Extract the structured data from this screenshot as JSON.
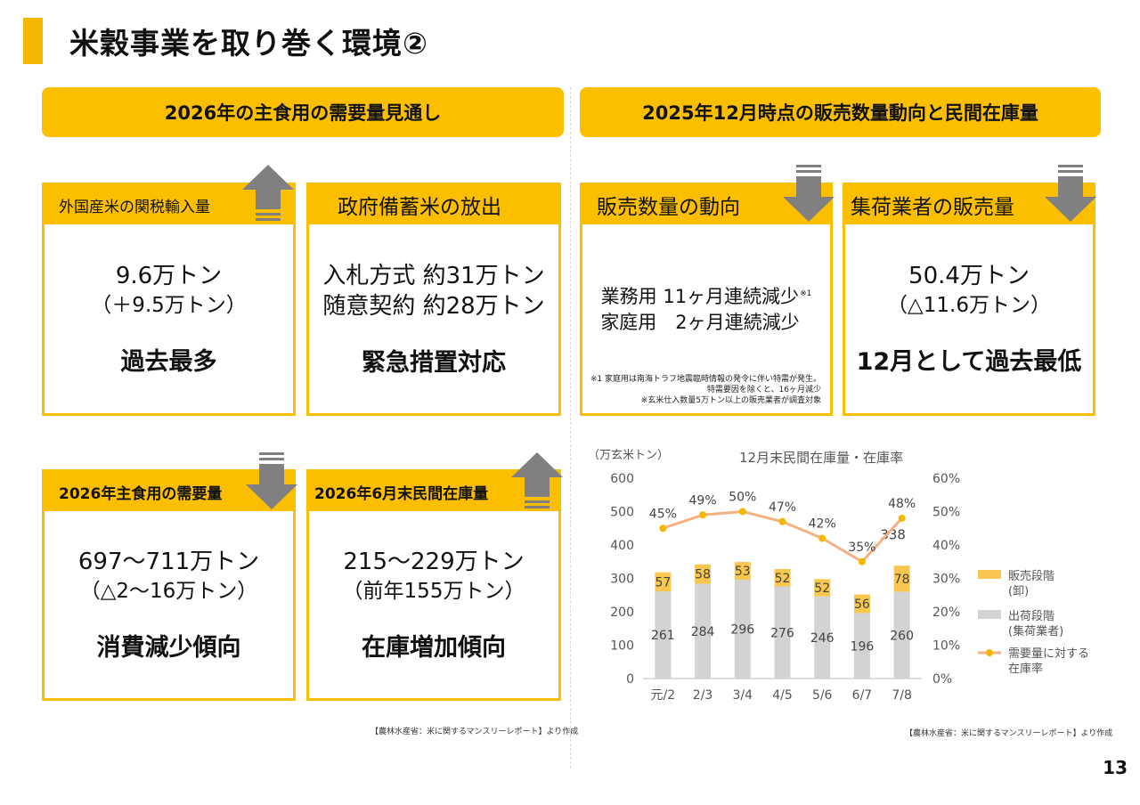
{
  "page": {
    "title": "米穀事業を取り巻く環境②",
    "number": "13"
  },
  "left_section": {
    "header": "2026年の主食用の需要量見通し",
    "cards": [
      {
        "label": "外国産米の関税輸入量",
        "line1": "9.6万トン",
        "line2": "（＋9.5万トン）",
        "emphasis": "過去最多",
        "trend": "up"
      },
      {
        "label": "政府備蓄米の放出",
        "line1": "入札方式 約31万トン",
        "line2": "随意契約 約28万トン",
        "emphasis": "緊急措置対応",
        "trend": "none"
      },
      {
        "label": "2026年主食用の需要量",
        "line1": "697～711万トン",
        "line2": "（△2～16万トン）",
        "emphasis": "消費減少傾向",
        "trend": "down"
      },
      {
        "label": "2026年6月末民間在庫量",
        "line1": "215～229万トン",
        "line2": "（前年155万トン）",
        "emphasis": "在庫増加傾向",
        "trend": "up"
      }
    ],
    "source": "【農林水産省：米に関するマンスリーレポート】より作成"
  },
  "right_section": {
    "header": "2025年12月時点の販売数量動向と民間在庫量",
    "cards": [
      {
        "label": "販売数量の動向",
        "line1": "業務用 11ヶ月連続減少",
        "sup": "※1",
        "line2": "家庭用　2ヶ月連続減少",
        "trend": "down",
        "notes": [
          "※1 家庭用は南海トラフ地震臨時情報の発令に伴い特需が発生。",
          "特需要因を除くと、16ヶ月減少",
          "※玄米仕入数量5万トン以上の販売業者が調査対象"
        ]
      },
      {
        "label": "集荷業者の販売量",
        "line1": "50.4万トン",
        "line2": "（△11.6万トン）",
        "emphasis": "12月として過去最低",
        "trend": "down"
      }
    ],
    "source": "【農林水産省：米に関するマンスリーレポート】より作成"
  },
  "colors": {
    "accent": "#fbbf00",
    "arrow": "#808080",
    "shipping_bar": "#d3d3d3",
    "sales_bar": "#f9c74f",
    "ratio_line": "#f4b183",
    "ratio_dot": "#f5b800"
  },
  "chart_data": {
    "type": "bar",
    "title": "12月末民間在庫量・在庫率",
    "ylabel": "（万玄米トン）",
    "categories": [
      "元/2",
      "2/3",
      "3/4",
      "4/5",
      "5/6",
      "6/7",
      "7/8"
    ],
    "ylim": [
      0,
      600
    ],
    "yticks": [
      "0",
      "100",
      "200",
      "300",
      "400",
      "500",
      "600"
    ],
    "y2lim": [
      0,
      60
    ],
    "y2ticks": [
      "0%",
      "10%",
      "20%",
      "30%",
      "40%",
      "50%",
      "60%"
    ],
    "series": [
      {
        "name": "出荷段階（集荷業者）",
        "legend_lines": [
          "出荷段階",
          "(集荷業者)"
        ],
        "kind": "stacked_bar",
        "values": [
          261,
          284,
          296,
          276,
          246,
          196,
          260
        ]
      },
      {
        "name": "販売段階（卸）",
        "legend_lines": [
          "販売段階",
          "(卸)"
        ],
        "kind": "stacked_bar",
        "values": [
          57,
          58,
          53,
          52,
          52,
          56,
          78
        ]
      },
      {
        "name": "需要量に対する在庫率",
        "legend_lines": [
          "需要量に対する",
          "在庫率"
        ],
        "kind": "line",
        "axis": "right",
        "values": [
          45,
          49,
          50,
          47,
          42,
          35,
          48
        ],
        "labels": [
          "45%",
          "49%",
          "50%",
          "47%",
          "42%",
          "35%",
          "48%"
        ]
      }
    ],
    "totals_label": {
      "index": 6,
      "text": "338"
    },
    "legend_position": "right"
  }
}
